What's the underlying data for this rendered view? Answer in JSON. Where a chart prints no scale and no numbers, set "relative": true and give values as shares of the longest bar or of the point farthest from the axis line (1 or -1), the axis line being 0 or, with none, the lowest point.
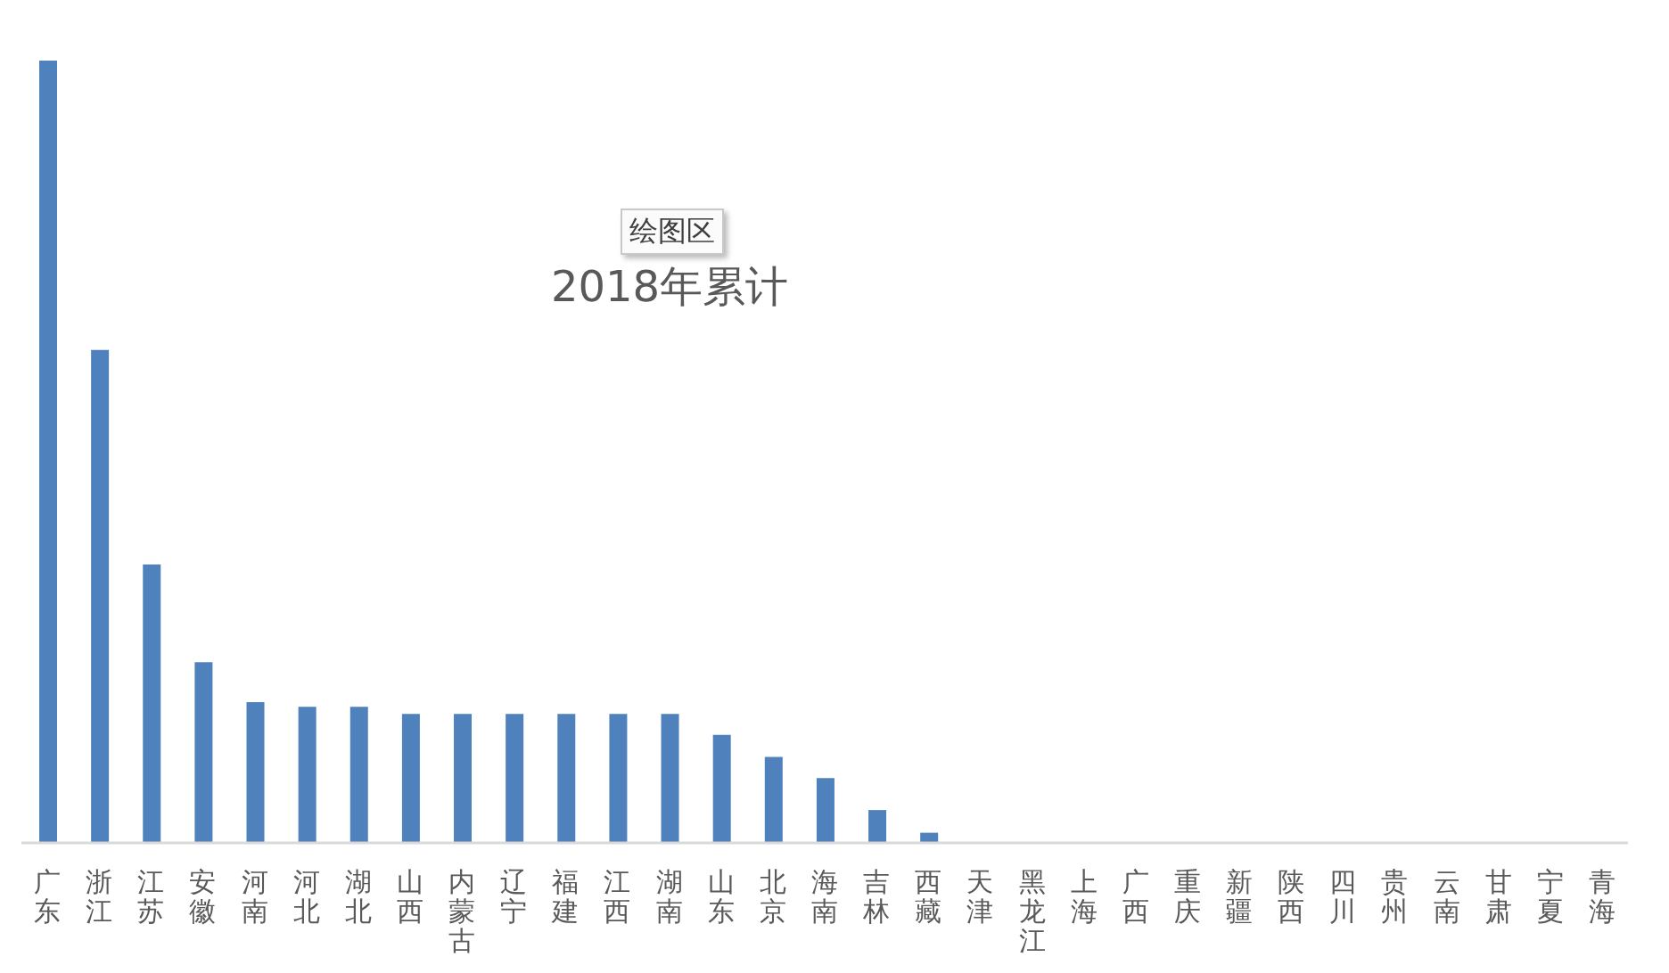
{
  "chart_data": {
    "type": "bar",
    "title": "2018年累计",
    "annotations": [
      "绘图区"
    ],
    "categories": [
      "广东",
      "浙江",
      "江苏",
      "安徽",
      "河南",
      "河北",
      "湖北",
      "山西",
      "内蒙古",
      "辽宁",
      "福建",
      "江西",
      "湖南",
      "山东",
      "北京",
      "海南",
      "吉林",
      "西藏",
      "天津",
      "黑龙江",
      "上海",
      "广西",
      "重庆",
      "新疆",
      "陕西",
      "四川",
      "贵州",
      "云南",
      "甘肃",
      "宁夏",
      "青海"
    ],
    "values": [
      1,
      0.63,
      0.356,
      0.231,
      0.18,
      0.174,
      0.174,
      0.165,
      0.165,
      0.165,
      0.165,
      0.165,
      0.165,
      0.138,
      0.11,
      0.083,
      0.042,
      0.013,
      0,
      0,
      0,
      0,
      0,
      0,
      0,
      0,
      0,
      0,
      0,
      0,
      0
    ],
    "color": "#4f81bd",
    "relative": true
  }
}
